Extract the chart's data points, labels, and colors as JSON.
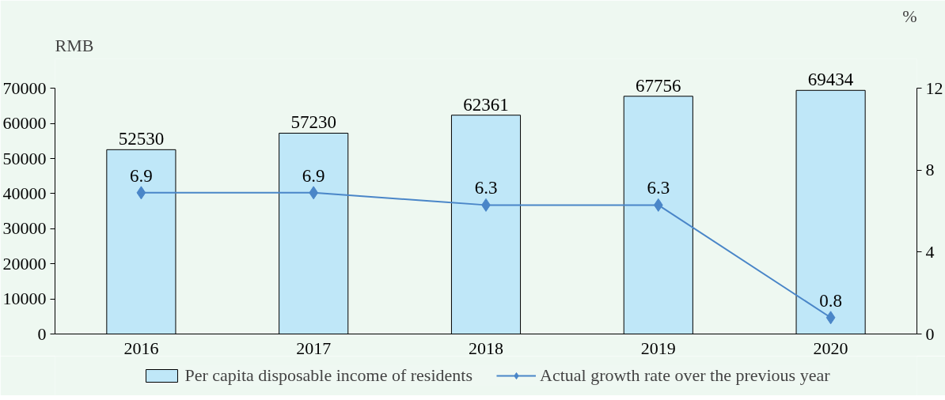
{
  "chart_data": {
    "type": "bar",
    "categories": [
      "2016",
      "2017",
      "2018",
      "2019",
      "2020"
    ],
    "ylabel": "RMB",
    "y2label": "%",
    "ylim": [
      0,
      70000
    ],
    "yticks": [
      0,
      10000,
      20000,
      30000,
      40000,
      50000,
      60000,
      70000
    ],
    "y2lim": [
      0,
      12
    ],
    "y2ticks": [
      0,
      4,
      8,
      12
    ],
    "data_labels": true,
    "legend": "bottom",
    "grid": false,
    "series": [
      {
        "name": "Per capita disposable income of residents",
        "color": "#bfe7f8",
        "values": [
          52530,
          57230,
          62361,
          67756,
          69434
        ]
      },
      {
        "name": "Actual growth rate over the previous year",
        "type": "line",
        "axis": "y2",
        "color": "#4a86c8",
        "marker": "diamond",
        "values": [
          6.9,
          6.9,
          6.3,
          6.3,
          0.8
        ]
      }
    ]
  }
}
